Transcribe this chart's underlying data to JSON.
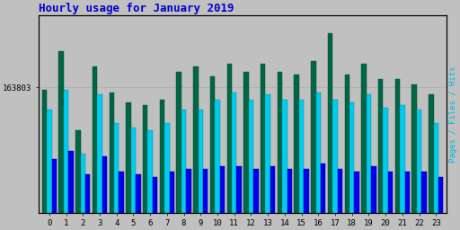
{
  "title": "Hourly usage for January 2019",
  "ylabel_right": "Pages / Files / Hits",
  "background_color": "#c0c0c0",
  "plot_bg_color": "#c0c0c0",
  "bar_colors_pages": "#006644",
  "bar_colors_files": "#00ccee",
  "bar_colors_hits": "#0000ee",
  "bar_edge_pages": "#004433",
  "bar_edge_files": "#008899",
  "bar_edge_hits": "#000099",
  "hours": [
    0,
    1,
    2,
    3,
    4,
    5,
    6,
    7,
    8,
    9,
    10,
    11,
    12,
    13,
    14,
    15,
    16,
    17,
    18,
    19,
    20,
    21,
    22,
    23
  ],
  "pages": [
    163000,
    178000,
    147000,
    172000,
    162000,
    158000,
    157000,
    159000,
    170000,
    172000,
    168000,
    173000,
    170000,
    173000,
    170000,
    169000,
    174000,
    185000,
    169000,
    173000,
    167000,
    167000,
    165000,
    161000
  ],
  "files": [
    155000,
    163000,
    138000,
    161000,
    150000,
    148000,
    147000,
    150000,
    155000,
    155000,
    159000,
    162000,
    159000,
    161000,
    159000,
    159000,
    162000,
    159000,
    158000,
    161000,
    156000,
    157000,
    155000,
    150000
  ],
  "hits": [
    136000,
    139000,
    130000,
    137000,
    131000,
    130000,
    129000,
    131000,
    132000,
    132000,
    133000,
    133000,
    132000,
    133000,
    132000,
    132000,
    134000,
    132000,
    131000,
    133000,
    131000,
    131000,
    131000,
    129000
  ],
  "ylim_min": 115000,
  "ylim_max": 192000,
  "ytick_val": 163803,
  "ytick_label": "163803",
  "title_color": "#0000cc",
  "title_fontsize": 9,
  "grid_color": "#aaaaaa",
  "ylabel_right_color": "#00bbdd",
  "ylabel_right_fontsize": 6.5
}
